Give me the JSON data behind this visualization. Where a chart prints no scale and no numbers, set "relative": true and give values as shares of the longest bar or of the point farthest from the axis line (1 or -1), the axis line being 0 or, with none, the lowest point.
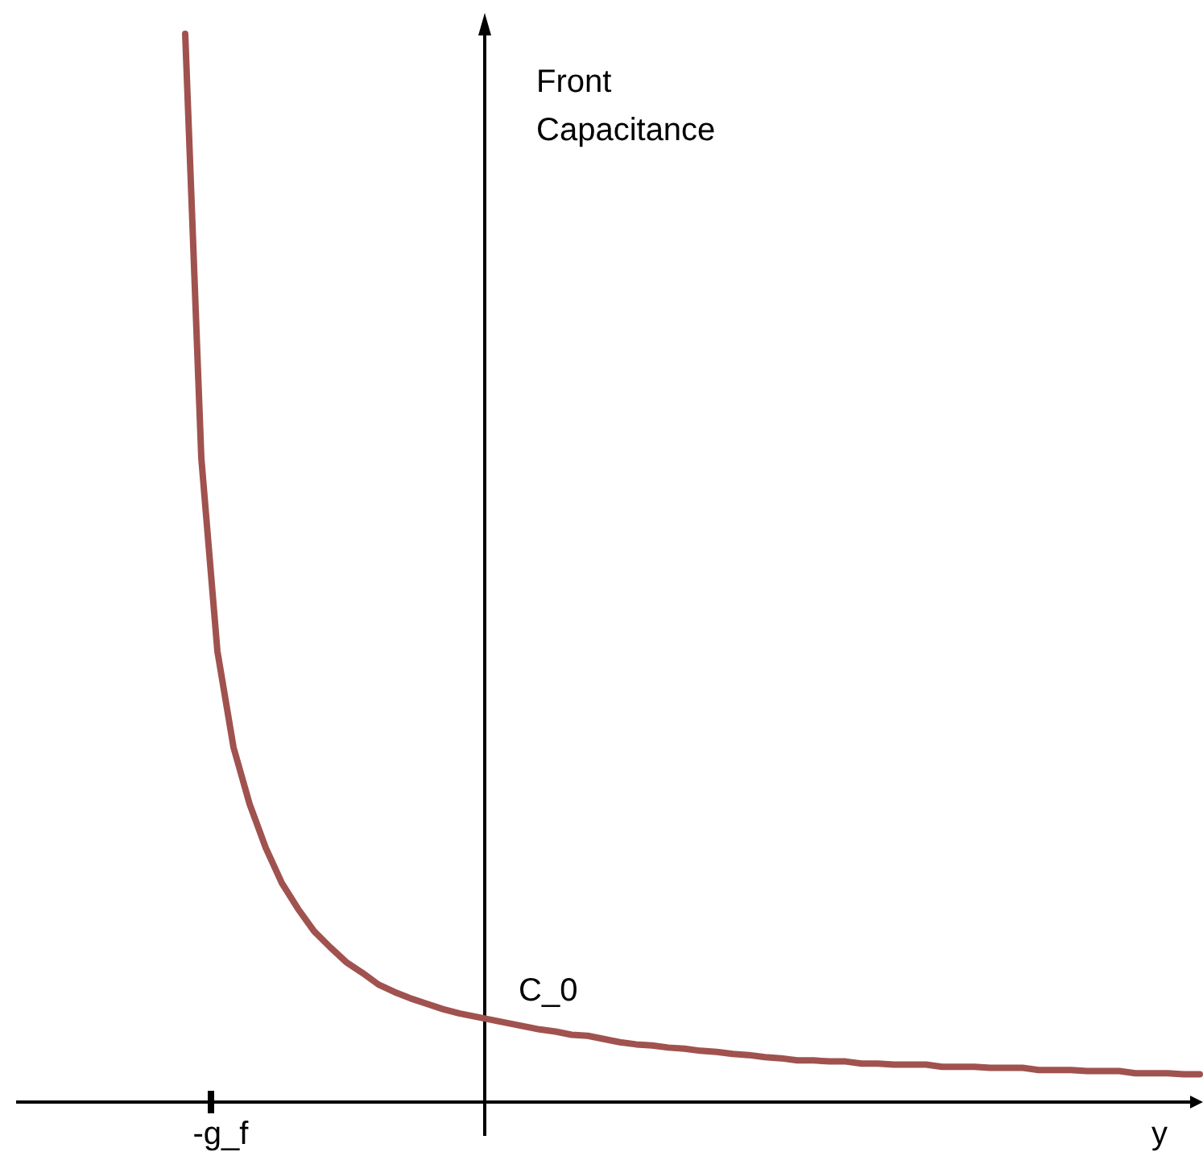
{
  "chart_data": {
    "type": "line",
    "relative": true,
    "xlabel": "y",
    "ylabel": "Front Capacitance",
    "annotations": [
      "C_0",
      "-g_f"
    ],
    "categories": [
      null,
      null,
      null,
      null,
      null,
      null,
      null,
      null,
      null,
      null,
      null,
      null,
      null,
      null,
      null,
      null,
      null,
      null,
      null,
      null,
      null,
      null,
      null,
      null,
      null,
      null,
      null,
      null,
      null,
      null,
      null,
      null,
      null,
      null,
      null,
      null,
      null,
      null,
      null,
      null,
      null,
      null,
      null,
      null,
      null,
      null,
      null,
      null,
      null,
      null,
      null,
      null,
      null,
      null,
      null,
      null,
      null,
      null,
      null,
      null,
      null,
      null,
      null,
      null
    ],
    "series": [
      {
        "color": "#a0524f",
        "values": [
          1,
          0.603,
          0.422,
          0.332,
          0.279,
          0.238,
          0.205,
          0.181,
          0.16,
          0.145,
          0.131,
          0.121,
          0.11,
          0.103,
          0.097,
          0.092,
          0.087,
          0.083,
          0.08,
          0.077,
          0.074,
          0.071,
          0.068,
          0.066,
          0.063,
          0.062,
          0.059,
          0.056,
          0.054,
          0.053,
          0.051,
          0.05,
          0.048,
          0.047,
          0.045,
          0.044,
          0.042,
          0.041,
          0.039,
          0.039,
          0.038,
          0.038,
          0.036,
          0.036,
          0.035,
          0.035,
          0.035,
          0.033,
          0.033,
          0.033,
          0.032,
          0.032,
          0.032,
          0.03,
          0.03,
          0.03,
          0.029,
          0.029,
          0.029,
          0.027,
          0.027,
          0.027,
          0.026,
          0.026
        ]
      }
    ],
    "marker": "none",
    "line_style": "solid"
  }
}
